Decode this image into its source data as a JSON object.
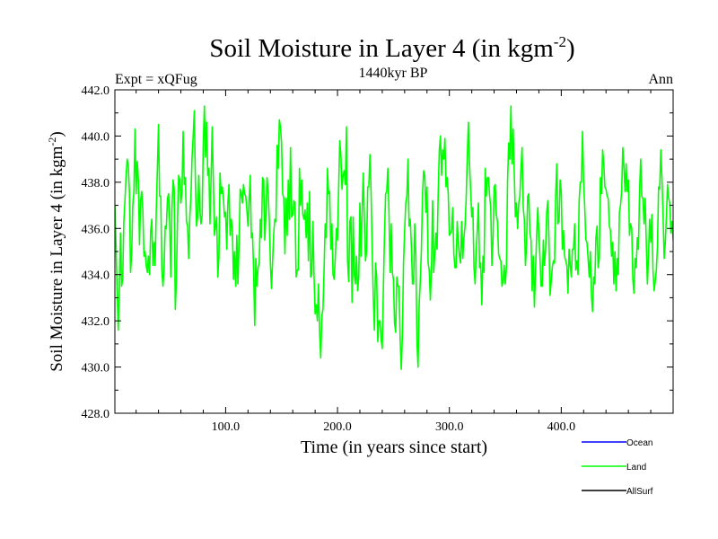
{
  "chart_data": {
    "type": "line",
    "title_main": "Soil Moisture in Layer 4 (in kgm",
    "title_sup": "-2",
    "title_close": ")",
    "subtitle": "1440kyr BP",
    "expt_label": "Expt = xQFug",
    "season_label": "Ann",
    "xlabel": "Time (in years since start)",
    "ylabel_main": "Soil Moisture in Layer 4 (in kgm",
    "ylabel_sup": "-2",
    "ylabel_close": ")",
    "xlim": [
      1,
      500
    ],
    "ylim": [
      428.0,
      442.0
    ],
    "xticks": [
      100,
      200,
      300,
      400
    ],
    "xtick_labels": [
      "100.0",
      "200.0",
      "300.0",
      "400.0"
    ],
    "yticks": [
      428,
      430,
      432,
      434,
      436,
      438,
      440,
      442
    ],
    "ytick_labels": [
      "428.0",
      "430.0",
      "432.0",
      "434.0",
      "436.0",
      "438.0",
      "440.0",
      "442.0"
    ],
    "legend_position": "bottom-right, outside plot",
    "series": [
      {
        "name": "Ocean",
        "color": "#0000ff",
        "values": []
      },
      {
        "name": "Land",
        "color": "#00ff00",
        "x_start": 1,
        "x_step": 1,
        "values": [
          437.0,
          435.3,
          433.3,
          431.6,
          433.3,
          435.8,
          433.5,
          433.8,
          436.3,
          437.2,
          438.3,
          439.0,
          438.7,
          437.6,
          434.1,
          434.9,
          437.0,
          437.6,
          440.3,
          437.5,
          438.9,
          438.1,
          435.3,
          437.2,
          437.6,
          436.8,
          434.8,
          435.0,
          434.4,
          434.1,
          434.8,
          434.0,
          435.9,
          436.4,
          434.4,
          435.4,
          434.4,
          436.8,
          438.6,
          440.5,
          437.4,
          437.4,
          434.2,
          433.5,
          434.3,
          436.1,
          436.0,
          437.3,
          437.5,
          436.3,
          433.9,
          436.8,
          438.1,
          437.7,
          432.5,
          433.8,
          436.4,
          438.3,
          438.1,
          437.1,
          437.6,
          440.2,
          437.9,
          438.2,
          436.3,
          436.1,
          434.7,
          436.5,
          437.4,
          439.1,
          440.0,
          441.1,
          437.9,
          436.1,
          436.5,
          438.3,
          436.8,
          436.2,
          436.6,
          439.6,
          441.3,
          439.1,
          440.6,
          438.3,
          438.6,
          436.2,
          438.2,
          440.4,
          438.1,
          435.7,
          436.1,
          436.5,
          433.9,
          434.8,
          438.4,
          437.5,
          437.8,
          437.3,
          436.5,
          436.7,
          435.1,
          437.1,
          437.9,
          435.7,
          436.4,
          436.0,
          433.8,
          435.0,
          433.5,
          435.7,
          433.6,
          435.3,
          437.7,
          437.5,
          437.1,
          437.9,
          437.5,
          437.4,
          436.8,
          436.1,
          437.2,
          438.3,
          435.6,
          435.8,
          434.2,
          431.8,
          434.7,
          433.5,
          434.3,
          434.5,
          436.4,
          435.6,
          438.2,
          438.1,
          435.5,
          436.6,
          438.2,
          437.6,
          436.4,
          434.5,
          433.4,
          434.6,
          435.8,
          436.4,
          436.3,
          439.6,
          438.6,
          440.7,
          440.4,
          439.7,
          437.5,
          437.3,
          434.9,
          437.3,
          435.7,
          438.1,
          436.4,
          439.5,
          436.5,
          436.6,
          437.2,
          437.1,
          433.9,
          434.2,
          434.2,
          438.6,
          437.0,
          438.1,
          436.6,
          436.4,
          436.8,
          435.6,
          437.1,
          434.6,
          437.6,
          433.9,
          434.0,
          436.3,
          434.0,
          432.3,
          432.7,
          432.0,
          433.6,
          431.5,
          430.4,
          432.2,
          432.5,
          434.2,
          436.2,
          435.6,
          438.6,
          437.5,
          437.6,
          435.1,
          436.2,
          434.0,
          433.8,
          434.7,
          436.0,
          435.5,
          437.7,
          439.8,
          439.2,
          437.7,
          438.3,
          438.5,
          437.9,
          440.4,
          434.6,
          433.7,
          436.3,
          436.5,
          432.8,
          436.5,
          434.0,
          433.6,
          434.8,
          433.3,
          433.9,
          437.1,
          434.8,
          436.7,
          438.4,
          436.4,
          434.6,
          435.0,
          437.8,
          437.8,
          439.2,
          437.6,
          435.1,
          433.0,
          431.6,
          434.5,
          433.9,
          431.1,
          432.0,
          432.0,
          431.2,
          430.8,
          433.4,
          435.7,
          437.5,
          437.6,
          438.6,
          436.7,
          434.1,
          436.2,
          434.1,
          433.8,
          431.9,
          431.5,
          433.9,
          433.5,
          433.5,
          431.2,
          429.9,
          431.4,
          434.5,
          435.9,
          437.1,
          437.4,
          439.0,
          436.1,
          436.4,
          435.3,
          433.6,
          433.6,
          436.2,
          434.9,
          431.1,
          430.0,
          432.7,
          433.7,
          435.1,
          437.5,
          438.5,
          438.3,
          436.7,
          437.8,
          434.5,
          434.2,
          432.9,
          434.3,
          437.2,
          434.1,
          434.9,
          435.8,
          435.1,
          437.5,
          439.4,
          440.0,
          438.3,
          439.4,
          439.0,
          439.9,
          437.8,
          438.2,
          437.5,
          435.7,
          435.8,
          435.9,
          436.9,
          434.9,
          434.3,
          434.3,
          436.3,
          435.4,
          434.8,
          434.5,
          436.3,
          434.7,
          435.6,
          436.1,
          437.3,
          439.1,
          440.6,
          438.8,
          437.7,
          436.5,
          436.9,
          434.3,
          433.6,
          435.0,
          436.0,
          437.1,
          434.3,
          434.5,
          432.7,
          434.8,
          434.1,
          438.6,
          437.4,
          438.2,
          438.2,
          437.4,
          436.9,
          434.4,
          435.5,
          437.8,
          437.9,
          436.6,
          436.3,
          434.9,
          434.7,
          434.6,
          433.5,
          433.7,
          434.4,
          433.6,
          434.3,
          438.0,
          439.7,
          439.0,
          441.3,
          438.8,
          440.3,
          438.4,
          436.5,
          437.1,
          436.0,
          437.1,
          437.4,
          438.6,
          439.5,
          436.9,
          436.4,
          434.4,
          435.3,
          437.4,
          437.5,
          435.8,
          435.5,
          433.3,
          434.8,
          432.6,
          434.1,
          435.7,
          436.9,
          435.8,
          434.7,
          433.5,
          433.5,
          435.5,
          434.4,
          435.1,
          436.7,
          437.2,
          435.6,
          433.1,
          433.7,
          434.3,
          434.6,
          434.5,
          437.4,
          438.8,
          436.2,
          436.3,
          438.1,
          437.6,
          435.1,
          435.9,
          434.8,
          434.6,
          434.4,
          433.2,
          435.1,
          434.4,
          433.9,
          435.1,
          435.1,
          436.2,
          434.2,
          434.6,
          434.0,
          437.2,
          438.0,
          438.0,
          440.2,
          438.0,
          436.9,
          435.5,
          435.4,
          434.7,
          433.9,
          435.0,
          433.1,
          432.4,
          433.9,
          433.6,
          435.6,
          436.1,
          434.3,
          434.7,
          438.2,
          437.5,
          439.4,
          438.8,
          437.8,
          437.7,
          437.4,
          437.3,
          436.1,
          435.9,
          434.8,
          435.4,
          433.6,
          435.0,
          433.3,
          434.7,
          434.0,
          436.7,
          437.0,
          437.6,
          439.5,
          438.7,
          437.6,
          438.8,
          437.6,
          438.1,
          435.7,
          436.2,
          436.0,
          433.8,
          433.2,
          434.7,
          434.3,
          435.6,
          435.1,
          437.6,
          439.0,
          437.4,
          437.3,
          436.2,
          437.3,
          435.4,
          433.6,
          434.8,
          436.4,
          435.4,
          436.6,
          434.2,
          433.3,
          433.7,
          434.2,
          435.2,
          437.8,
          437.7,
          439.4,
          438.2,
          436.6,
          434.7,
          435.4,
          436.5,
          437.9,
          437.3,
          437.1,
          435.8,
          436.3,
          435.5
        ]
      },
      {
        "name": "AllSurf",
        "color": "#000000",
        "values": []
      }
    ]
  }
}
